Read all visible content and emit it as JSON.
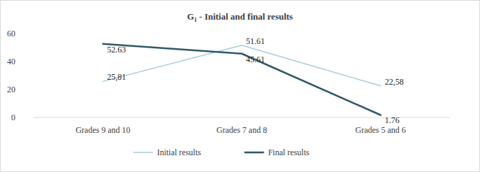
{
  "chart_data": {
    "type": "line",
    "title": "G₁ - Initial and final results",
    "categories": [
      "Grades 9 and 10",
      "Grades 7 and 8",
      "Grades 5 and 6"
    ],
    "series": [
      {
        "name": "Initial results",
        "color": "#a9cbd8",
        "values": [
          25.81,
          51.61,
          22.58
        ],
        "value_labels": [
          "25,81",
          "51.61",
          "22,58"
        ]
      },
      {
        "name": "Final results",
        "color": "#2f5868",
        "values": [
          52.63,
          45.61,
          1.76
        ]
      }
    ],
    "ylim": [
      0,
      60
    ],
    "yticks": [
      0,
      20,
      40,
      60
    ],
    "grid": false,
    "legend": "bottom",
    "data_labels": true
  }
}
